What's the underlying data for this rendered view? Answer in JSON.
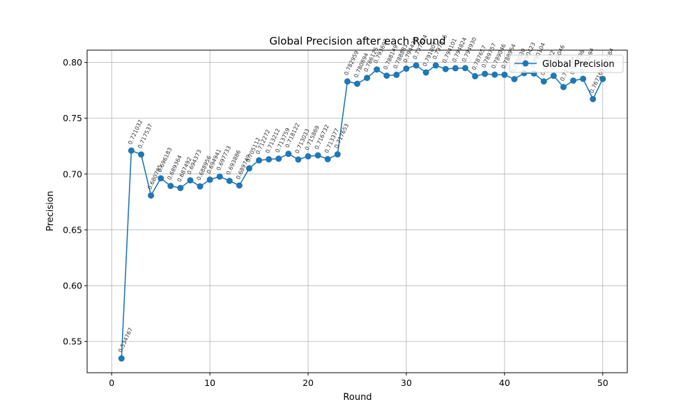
{
  "chart_data": {
    "type": "line",
    "title": "Global Precision after each Round",
    "xlabel": "Round",
    "ylabel": "Precision",
    "xlim": [
      -2.5,
      52.5
    ],
    "ylim": [
      0.522,
      0.811
    ],
    "xticks": [
      0,
      10,
      20,
      30,
      40,
      50
    ],
    "yticks": [
      0.55,
      0.6,
      0.65,
      0.7,
      0.75,
      0.8
    ],
    "ytick_labels": [
      "0.55",
      "0.60",
      "0.65",
      "0.70",
      "0.75",
      "0.80"
    ],
    "grid": true,
    "legend_position": "top-right",
    "color": "#1f77b4",
    "x": [
      1,
      2,
      3,
      4,
      5,
      6,
      7,
      8,
      9,
      10,
      11,
      12,
      13,
      14,
      15,
      16,
      17,
      18,
      19,
      20,
      21,
      22,
      23,
      24,
      25,
      26,
      27,
      28,
      29,
      30,
      31,
      32,
      33,
      34,
      35,
      36,
      37,
      38,
      39,
      40,
      41,
      42,
      43,
      44,
      45,
      46,
      47,
      48,
      49,
      50
    ],
    "series": [
      {
        "name": "Global Precision",
        "values": [
          0.534767,
          0.721032,
          0.717537,
          0.680795,
          0.696183,
          0.689364,
          0.687492,
          0.694373,
          0.688956,
          0.694941,
          0.697733,
          0.693886,
          0.689749,
          0.705112,
          0.712272,
          0.713212,
          0.713759,
          0.718122,
          0.713033,
          0.715869,
          0.716732,
          0.713377,
          0.717653,
          0.782959,
          0.780894,
          0.786126,
          0.793697,
          0.788149,
          0.788883,
          0.794433,
          0.797324,
          0.791007,
          0.797316,
          0.794101,
          0.794824,
          0.79493,
          0.787657,
          0.789757,
          0.789046,
          0.788964,
          0.78503,
          0.790423,
          0.790104,
          0.783022,
          0.788046,
          0.777924,
          0.783708,
          0.785294,
          0.767169,
          0.785184
        ],
        "labels": [
          "0.534767",
          "0.721032",
          "0.717537",
          "0.680795",
          "0.696183",
          "0.689364",
          "0.687492",
          "0.694373",
          "0.688956",
          "0.694941",
          "0.697733",
          "0.693886",
          "0.689749",
          "0.705112",
          "0.712272",
          "0.713212",
          "0.713759",
          "0.718122",
          "0.713033",
          "0.715869",
          "0.716732",
          "0.713377",
          "0.717653",
          "0.782959",
          "0.780894",
          "0.786126",
          "0.793697",
          "0.788149",
          "0.788883",
          "0.794433",
          "0.797324",
          "0.791007",
          "0.797316",
          "0.794101",
          "0.794824",
          "0.794930",
          "0.787657",
          "0.789757",
          "0.789046",
          "0.788964",
          "0.785030",
          "0.790423",
          "0.790104",
          "0.783022",
          "0.788046",
          "0.777924",
          "0.783708",
          "0.785294",
          "0.767169",
          "0.785184"
        ]
      }
    ]
  }
}
